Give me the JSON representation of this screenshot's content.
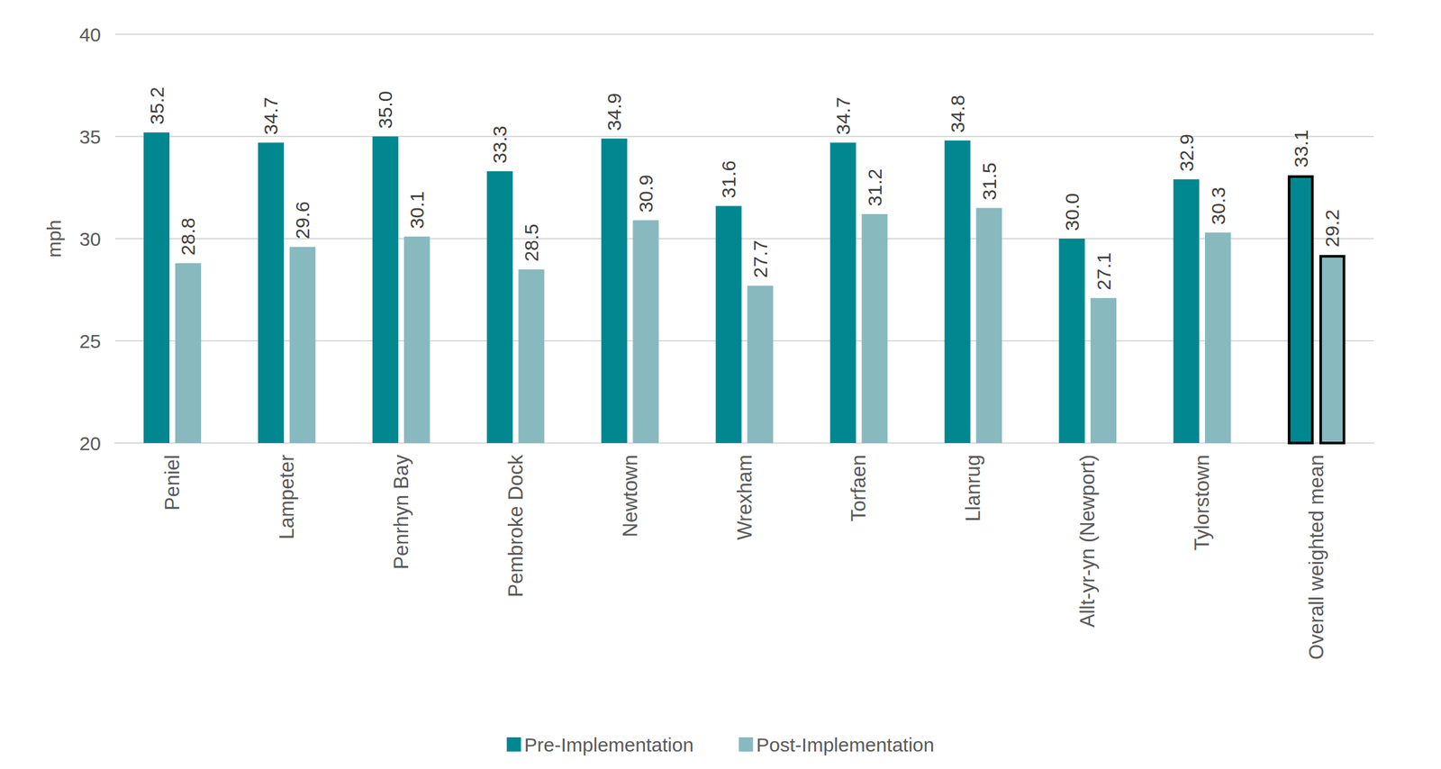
{
  "chart_data": {
    "type": "bar",
    "y_label": "mph",
    "categories": [
      "Peniel",
      "Lampeter",
      "Penrhyn Bay",
      "Pembroke Dock",
      "Newtown",
      "Wrexham",
      "Torfaen",
      "Llanrug",
      "Allt-yr-yn (Newport)",
      "Tylorstown",
      "Overall weighted mean"
    ],
    "series": [
      {
        "name": "Pre-Implementation",
        "color": "#00878f",
        "values": [
          35.2,
          34.7,
          35.0,
          33.3,
          34.9,
          31.6,
          34.7,
          34.8,
          30.0,
          32.9,
          33.1
        ],
        "value_labels": [
          "35.2",
          "34.7",
          "35.0",
          "33.3",
          "34.9",
          "31.6",
          "34.7",
          "34.8",
          "30.0",
          "32.9",
          "33.1"
        ]
      },
      {
        "name": "Post-Implementation",
        "color": "#87b9bf",
        "values": [
          28.8,
          29.6,
          30.1,
          28.5,
          30.9,
          27.7,
          31.2,
          31.5,
          27.1,
          30.3,
          29.2
        ]
      }
    ],
    "ylim": [
      20,
      40
    ],
    "yticks": [
      20,
      25,
      30,
      35,
      40
    ],
    "grid": true,
    "legend": "bottom",
    "data_labels": true
  }
}
